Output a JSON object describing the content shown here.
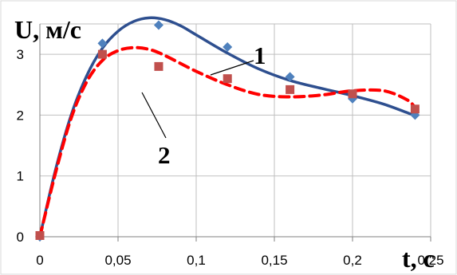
{
  "chart_data": {
    "type": "line",
    "xlabel": "t, c",
    "ylabel": "U, м/c",
    "xlim": [
      0,
      0.25
    ],
    "ylim": [
      0,
      3.5
    ],
    "x_ticks": [
      "0",
      "0,05",
      "0,1",
      "0,15",
      "0,2",
      "0,25"
    ],
    "y_ticks": [
      "0",
      "1",
      "2",
      "3"
    ],
    "grid": true,
    "series": [
      {
        "name": "1",
        "color": "#2e4f8f",
        "line_style": "solid",
        "marker": "diamond",
        "marker_color": "#4f81bd",
        "points": [
          {
            "x": 0,
            "y": 0
          },
          {
            "x": 0.04,
            "y": 3.18
          },
          {
            "x": 0.076,
            "y": 3.48
          },
          {
            "x": 0.12,
            "y": 3.12
          },
          {
            "x": 0.16,
            "y": 2.63
          },
          {
            "x": 0.2,
            "y": 2.27
          },
          {
            "x": 0.24,
            "y": 2.0
          }
        ],
        "curve": [
          {
            "x": 0,
            "y": 0
          },
          {
            "x": 0.01,
            "y": 1.1
          },
          {
            "x": 0.02,
            "y": 2.0
          },
          {
            "x": 0.03,
            "y": 2.65
          },
          {
            "x": 0.04,
            "y": 3.1
          },
          {
            "x": 0.05,
            "y": 3.38
          },
          {
            "x": 0.06,
            "y": 3.54
          },
          {
            "x": 0.07,
            "y": 3.6
          },
          {
            "x": 0.08,
            "y": 3.57
          },
          {
            "x": 0.09,
            "y": 3.47
          },
          {
            "x": 0.1,
            "y": 3.32
          },
          {
            "x": 0.12,
            "y": 3.02
          },
          {
            "x": 0.14,
            "y": 2.76
          },
          {
            "x": 0.16,
            "y": 2.57
          },
          {
            "x": 0.18,
            "y": 2.44
          },
          {
            "x": 0.2,
            "y": 2.32
          },
          {
            "x": 0.22,
            "y": 2.18
          },
          {
            "x": 0.24,
            "y": 1.99
          }
        ]
      },
      {
        "name": "2",
        "color": "#ff0000",
        "line_style": "dashed",
        "marker": "square",
        "marker_color": "#c0504d",
        "points": [
          {
            "x": 0,
            "y": 0.02
          },
          {
            "x": 0.04,
            "y": 3.0
          },
          {
            "x": 0.076,
            "y": 2.8
          },
          {
            "x": 0.12,
            "y": 2.6
          },
          {
            "x": 0.16,
            "y": 2.42
          },
          {
            "x": 0.2,
            "y": 2.35
          },
          {
            "x": 0.24,
            "y": 2.1
          }
        ],
        "curve": [
          {
            "x": 0,
            "y": 0
          },
          {
            "x": 0.01,
            "y": 1.05
          },
          {
            "x": 0.02,
            "y": 1.95
          },
          {
            "x": 0.03,
            "y": 2.55
          },
          {
            "x": 0.04,
            "y": 2.9
          },
          {
            "x": 0.05,
            "y": 3.06
          },
          {
            "x": 0.06,
            "y": 3.11
          },
          {
            "x": 0.07,
            "y": 3.08
          },
          {
            "x": 0.08,
            "y": 2.98
          },
          {
            "x": 0.1,
            "y": 2.72
          },
          {
            "x": 0.12,
            "y": 2.5
          },
          {
            "x": 0.14,
            "y": 2.34
          },
          {
            "x": 0.16,
            "y": 2.3
          },
          {
            "x": 0.18,
            "y": 2.33
          },
          {
            "x": 0.2,
            "y": 2.4
          },
          {
            "x": 0.22,
            "y": 2.4
          },
          {
            "x": 0.235,
            "y": 2.25
          },
          {
            "x": 0.24,
            "y": 2.12
          }
        ]
      }
    ]
  }
}
